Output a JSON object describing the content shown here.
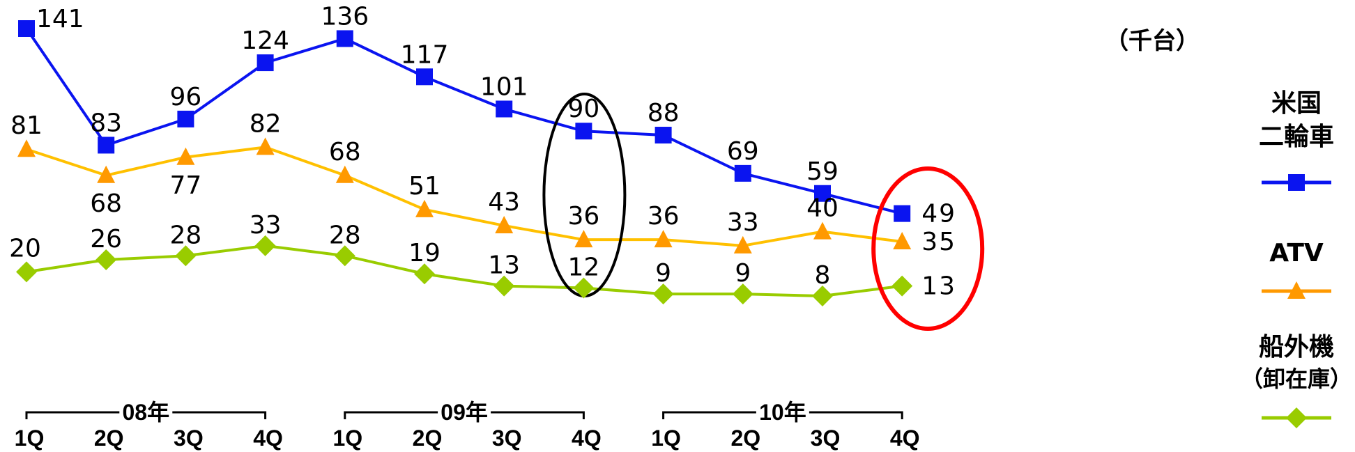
{
  "chart_data": {
    "type": "line",
    "unit_label": "（千台）",
    "categories": [
      "1Q",
      "2Q",
      "3Q",
      "4Q",
      "1Q",
      "2Q",
      "3Q",
      "4Q",
      "1Q",
      "2Q",
      "3Q",
      "4Q"
    ],
    "years": [
      {
        "label": "08年"
      },
      {
        "label": "09年"
      },
      {
        "label": "10年"
      }
    ],
    "series": [
      {
        "name_lines": [
          "米国",
          "二輪車"
        ],
        "color": "#0a14f0",
        "marker": "square",
        "values": [
          141,
          83,
          96,
          124,
          136,
          117,
          101,
          90,
          88,
          69,
          59,
          49
        ]
      },
      {
        "name_lines": [
          "ATV"
        ],
        "color": "#ffc000",
        "marker_color": "#ff9900",
        "legend_color": "#ff9900",
        "marker": "triangle",
        "values": [
          81,
          68,
          77,
          82,
          68,
          51,
          43,
          36,
          36,
          33,
          40,
          35
        ]
      },
      {
        "name_lines": [
          "船外機",
          "（卸在庫）"
        ],
        "color": "#99cc00",
        "marker_color": "#99cc00",
        "marker": "diamond",
        "values": [
          20,
          26,
          28,
          33,
          28,
          19,
          13,
          12,
          9,
          9,
          8,
          13
        ]
      }
    ],
    "highlights": [
      {
        "category_index": 7,
        "color": "#000000"
      },
      {
        "category_index": 11,
        "color": "#ff0000"
      }
    ]
  }
}
